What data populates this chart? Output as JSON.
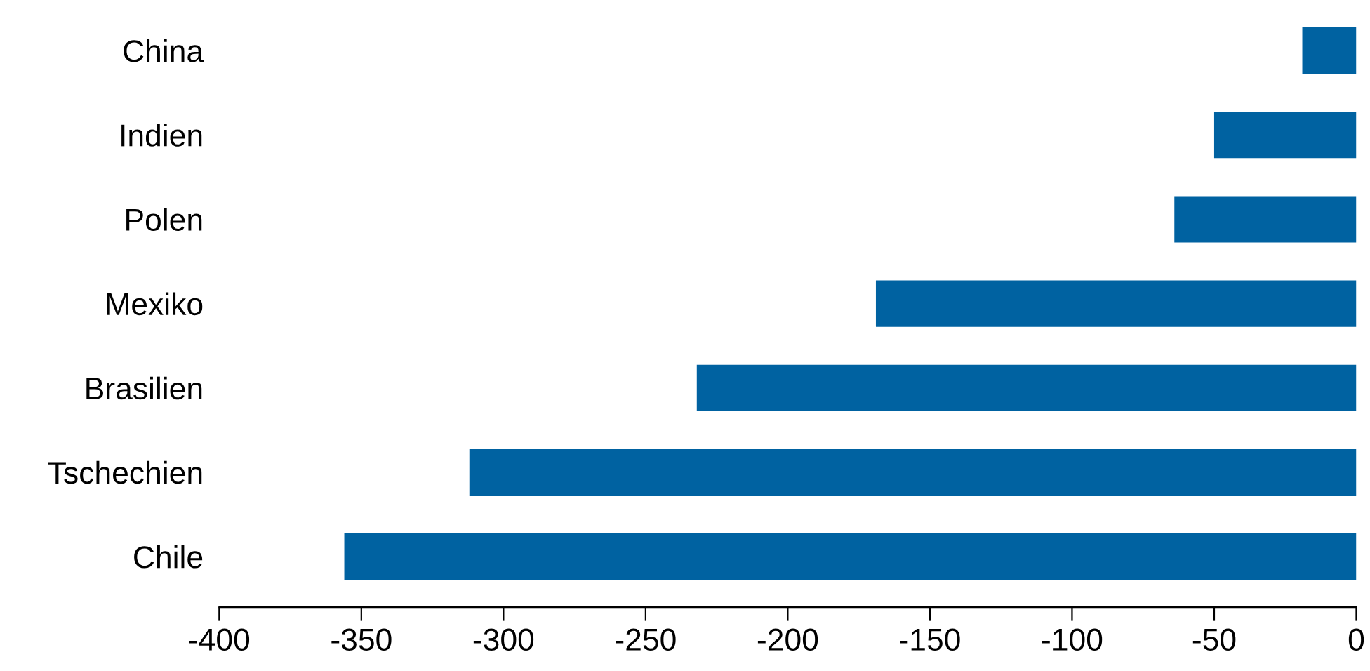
{
  "chart_data": {
    "type": "bar",
    "orientation": "horizontal",
    "categories": [
      "China",
      "Indien",
      "Polen",
      "Mexiko",
      "Brasilien",
      "Tschechien",
      "Chile"
    ],
    "values": [
      -19,
      -50,
      -64,
      -169,
      -232,
      -312,
      -356
    ],
    "color": "#0062a1",
    "xlim": [
      -400,
      0
    ],
    "xticks": [
      -400,
      -350,
      -300,
      -250,
      -200,
      -150,
      -100,
      -50,
      0
    ],
    "grid": false,
    "legend": false
  }
}
